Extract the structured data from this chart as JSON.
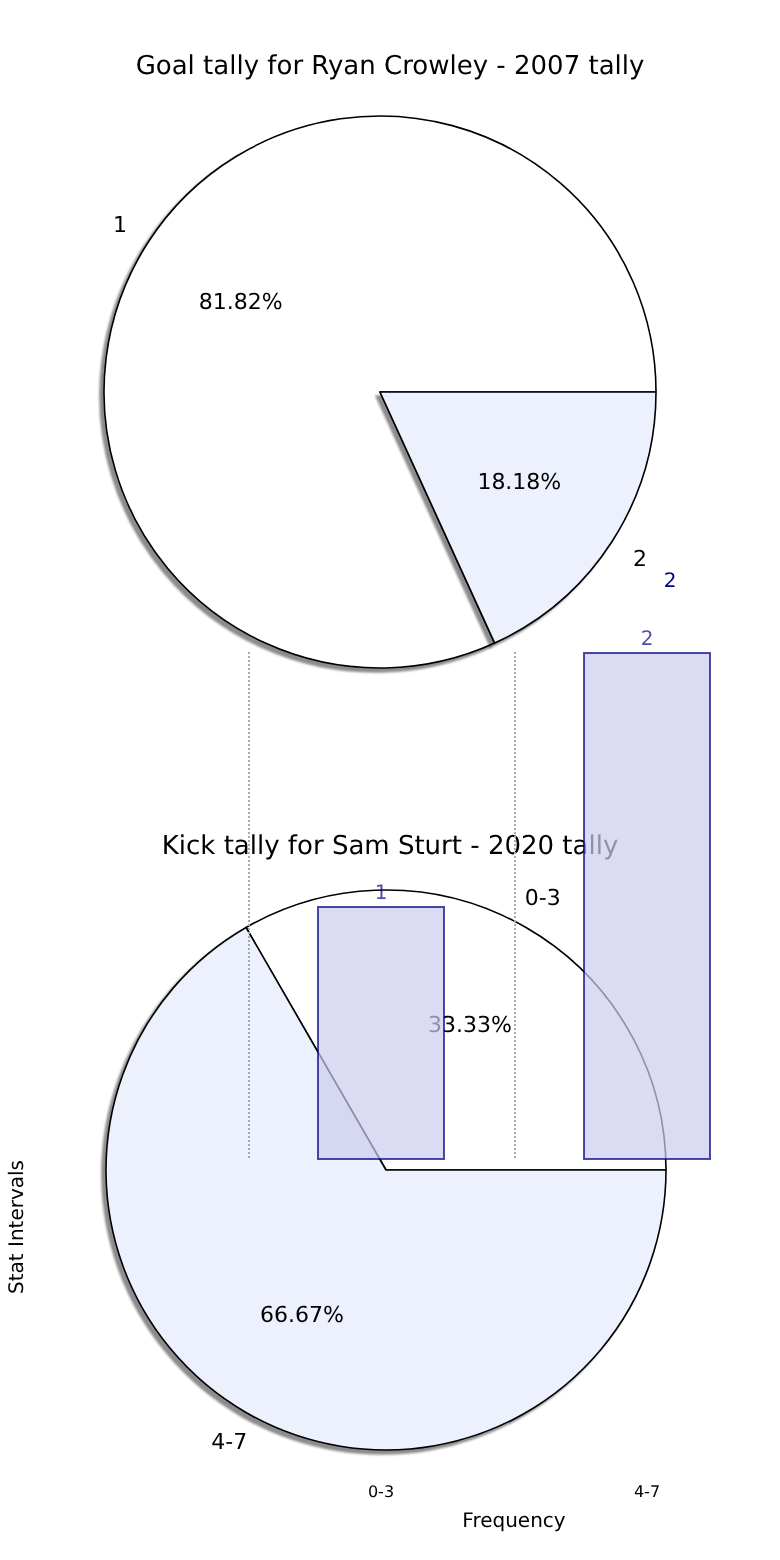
{
  "chart_data": [
    {
      "type": "pie",
      "title": "Goal tally for Ryan Crowley - 2007 tally",
      "categories": [
        "1",
        "2"
      ],
      "values": [
        81.82,
        18.18
      ],
      "colors": [
        "#ffffff",
        "#ecf1fd"
      ],
      "value_labels": [
        "81.82%",
        "18.18%"
      ]
    },
    {
      "type": "pie",
      "title": "Kick tally for Sam Sturt - 2020 tally",
      "categories": [
        "0-3",
        "4-7"
      ],
      "values": [
        33.33,
        66.67
      ],
      "colors": [
        "#ffffff",
        "#ecf1fd"
      ],
      "value_labels": [
        "33.33%",
        "66.67%"
      ]
    },
    {
      "type": "bar",
      "xlabel": "Frequency",
      "ylabel": "Stat Intervals",
      "categories": [
        "0-3",
        "4-7"
      ],
      "values": [
        1,
        2
      ],
      "color": "#ccccee",
      "data_labels": true,
      "grid": "x",
      "annotations": [
        "2"
      ]
    }
  ]
}
